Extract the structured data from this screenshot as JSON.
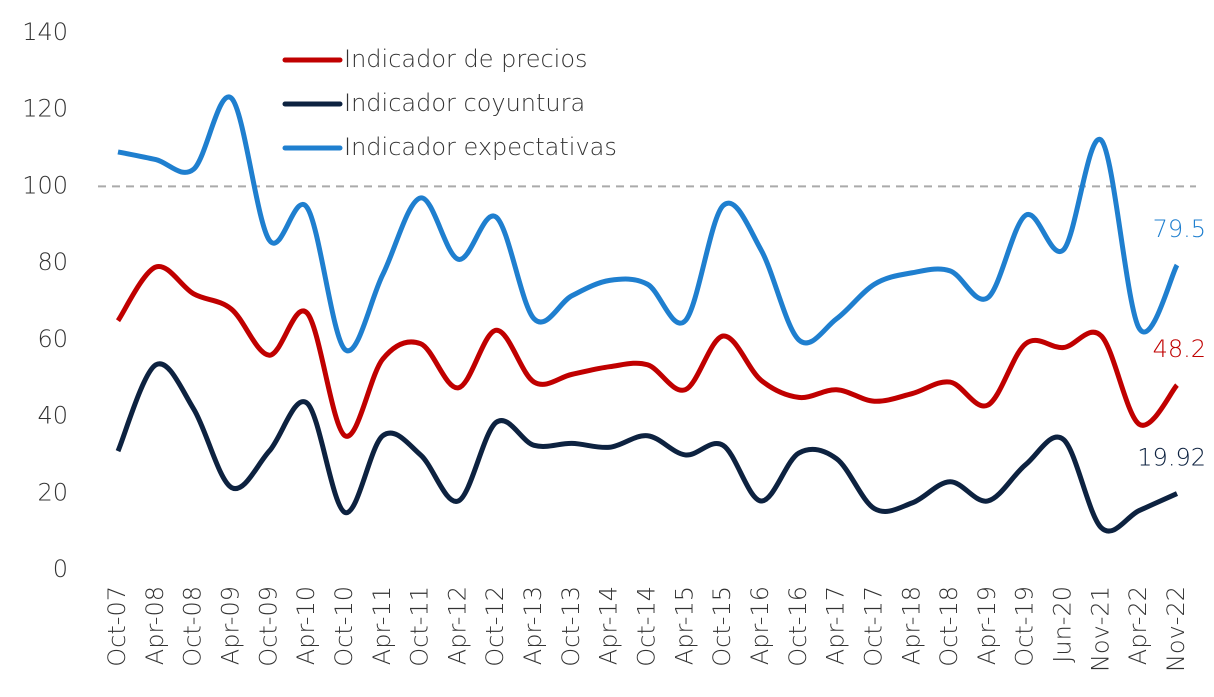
{
  "chart_data": {
    "type": "line",
    "categories": [
      "Oct-07",
      "Apr-08",
      "Oct-08",
      "Apr-09",
      "Oct-09",
      "Apr-10",
      "Oct-10",
      "Apr-11",
      "Oct-11",
      "Apr-12",
      "Oct-12",
      "Apr-13",
      "Oct-13",
      "Apr-14",
      "Oct-14",
      "Apr-15",
      "Oct-15",
      "Apr-16",
      "Oct-16",
      "Apr-17",
      "Oct-17",
      "Apr-18",
      "Oct-18",
      "Apr-19",
      "Oct-19",
      "Jun-20",
      "Nov-21",
      "Apr-22",
      "Nov-22"
    ],
    "series": [
      {
        "name": "Indicador de precios",
        "color": "#c00000",
        "values": [
          65,
          79,
          72,
          68,
          56,
          67,
          35,
          55,
          59,
          47.5,
          62.5,
          49,
          51,
          53,
          53.5,
          47,
          61,
          49.5,
          45,
          47,
          44,
          46,
          49,
          43,
          59,
          58,
          61,
          38,
          48.2
        ]
      },
      {
        "name": "Indicador coyuntura",
        "color": "#0d2240",
        "values": [
          31,
          53.5,
          42,
          21.5,
          31,
          43.5,
          15,
          35,
          30,
          18,
          38.5,
          32.5,
          33,
          32,
          35,
          30,
          32.5,
          18,
          30.5,
          29,
          16,
          17.5,
          23,
          18,
          27.5,
          34,
          11,
          15.5,
          19.92
        ]
      },
      {
        "name": "Indicador expectativas",
        "color": "#1f7fcf",
        "values": [
          109,
          107,
          104.5,
          123,
          86,
          94.5,
          57.5,
          77,
          97,
          81,
          92,
          65.5,
          71.5,
          75.5,
          74.5,
          65,
          95,
          83.5,
          60,
          65.5,
          74.5,
          77.5,
          78,
          71,
          92.5,
          83.5,
          112,
          63,
          79.5
        ]
      }
    ],
    "ylim": [
      0,
      140
    ],
    "yticks": [
      0,
      20,
      40,
      60,
      80,
      100,
      120,
      140
    ],
    "reference_line": 100,
    "grid": false,
    "legend": "top-left"
  }
}
